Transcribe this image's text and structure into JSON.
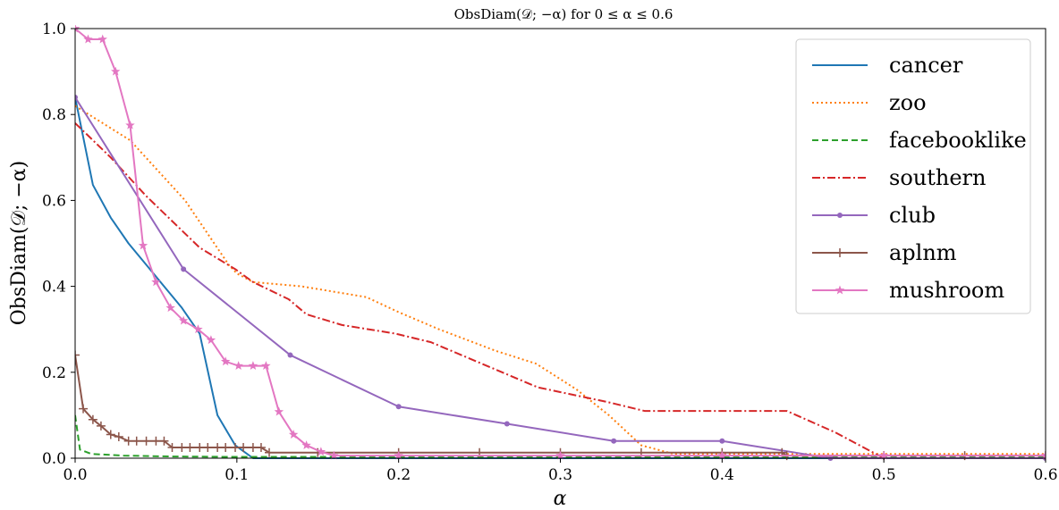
{
  "chart_data": {
    "type": "line",
    "title": "ObsDiam(𝒟; −α) for 0 ≤ α ≤ 0.6",
    "xlabel": "α",
    "ylabel": "ObsDiam(𝒟; −α)",
    "xlim": [
      0,
      0.6
    ],
    "ylim": [
      0,
      1.0
    ],
    "xticks": [
      "0.0",
      "0.1",
      "0.2",
      "0.3",
      "0.4",
      "0.5",
      "0.6"
    ],
    "yticks": [
      "0.0",
      "0.2",
      "0.4",
      "0.6",
      "0.8",
      "1.0"
    ],
    "legend_position": "top-right",
    "grid": false,
    "series": [
      {
        "name": "cancer",
        "color": "#1f77b4",
        "dash": "solid",
        "marker": "none",
        "points": [
          [
            0,
            0.84
          ],
          [
            0.011,
            0.636
          ],
          [
            0.022,
            0.56
          ],
          [
            0.033,
            0.5
          ],
          [
            0.044,
            0.45
          ],
          [
            0.055,
            0.4
          ],
          [
            0.066,
            0.35
          ],
          [
            0.077,
            0.29
          ],
          [
            0.088,
            0.1
          ],
          [
            0.099,
            0.03
          ],
          [
            0.11,
            0.0
          ],
          [
            0.6,
            0.0
          ]
        ]
      },
      {
        "name": "zoo",
        "color": "#ff7f0e",
        "dash": "dotted",
        "marker": "none",
        "points": [
          [
            0,
            0.82
          ],
          [
            0.034,
            0.74
          ],
          [
            0.068,
            0.6
          ],
          [
            0.095,
            0.45
          ],
          [
            0.1,
            0.43
          ],
          [
            0.11,
            0.41
          ],
          [
            0.14,
            0.4
          ],
          [
            0.18,
            0.375
          ],
          [
            0.2,
            0.34
          ],
          [
            0.225,
            0.3
          ],
          [
            0.26,
            0.25
          ],
          [
            0.285,
            0.22
          ],
          [
            0.31,
            0.16
          ],
          [
            0.33,
            0.1
          ],
          [
            0.35,
            0.03
          ],
          [
            0.37,
            0.01
          ],
          [
            0.6,
            0.01
          ]
        ]
      },
      {
        "name": "facebooklike",
        "color": "#2ca02c",
        "dash": "dashed",
        "marker": "none",
        "points": [
          [
            0,
            0.1
          ],
          [
            0.003,
            0.02
          ],
          [
            0.01,
            0.01
          ],
          [
            0.03,
            0.006
          ],
          [
            0.06,
            0.004
          ],
          [
            0.1,
            0.003
          ],
          [
            0.6,
            0.003
          ]
        ]
      },
      {
        "name": "southern",
        "color": "#d62728",
        "dash": "dashdot",
        "marker": "none",
        "points": [
          [
            0,
            0.78
          ],
          [
            0.022,
            0.7
          ],
          [
            0.044,
            0.61
          ],
          [
            0.066,
            0.53
          ],
          [
            0.077,
            0.49
          ],
          [
            0.099,
            0.44
          ],
          [
            0.11,
            0.41
          ],
          [
            0.132,
            0.37
          ],
          [
            0.143,
            0.335
          ],
          [
            0.165,
            0.31
          ],
          [
            0.198,
            0.29
          ],
          [
            0.22,
            0.27
          ],
          [
            0.264,
            0.2
          ],
          [
            0.286,
            0.165
          ],
          [
            0.33,
            0.13
          ],
          [
            0.352,
            0.11
          ],
          [
            0.44,
            0.11
          ],
          [
            0.47,
            0.06
          ],
          [
            0.5,
            0.0
          ],
          [
            0.6,
            0.0
          ]
        ]
      },
      {
        "name": "club",
        "color": "#9467bd",
        "dash": "solid",
        "marker": "circle",
        "points": [
          [
            0,
            0.84
          ],
          [
            0.067,
            0.44
          ],
          [
            0.133,
            0.24
          ],
          [
            0.2,
            0.12
          ],
          [
            0.267,
            0.08
          ],
          [
            0.333,
            0.04
          ],
          [
            0.4,
            0.04
          ],
          [
            0.467,
            0.0
          ],
          [
            0.6,
            0.0
          ]
        ]
      },
      {
        "name": "aplnm",
        "color": "#8c564b",
        "dash": "solid",
        "marker": "plus",
        "points": [
          [
            0,
            0.24
          ],
          [
            0.005,
            0.115
          ],
          [
            0.011,
            0.09
          ],
          [
            0.016,
            0.075
          ],
          [
            0.022,
            0.055
          ],
          [
            0.027,
            0.05
          ],
          [
            0.033,
            0.04
          ],
          [
            0.038,
            0.04
          ],
          [
            0.044,
            0.04
          ],
          [
            0.05,
            0.04
          ],
          [
            0.055,
            0.04
          ],
          [
            0.06,
            0.025
          ],
          [
            0.066,
            0.025
          ],
          [
            0.071,
            0.025
          ],
          [
            0.077,
            0.025
          ],
          [
            0.082,
            0.025
          ],
          [
            0.088,
            0.025
          ],
          [
            0.093,
            0.025
          ],
          [
            0.099,
            0.025
          ],
          [
            0.104,
            0.025
          ],
          [
            0.11,
            0.025
          ],
          [
            0.115,
            0.025
          ],
          [
            0.12,
            0.013
          ],
          [
            0.15,
            0.013
          ],
          [
            0.2,
            0.013
          ],
          [
            0.25,
            0.013
          ],
          [
            0.3,
            0.013
          ],
          [
            0.35,
            0.013
          ],
          [
            0.4,
            0.013
          ],
          [
            0.437,
            0.013
          ],
          [
            0.44,
            0.006
          ],
          [
            0.5,
            0.006
          ],
          [
            0.55,
            0.006
          ],
          [
            0.6,
            0.006
          ]
        ]
      },
      {
        "name": "mushroom",
        "color": "#e377c2",
        "dash": "solid",
        "marker": "star",
        "points": [
          [
            0,
            1.0
          ],
          [
            0.008,
            0.975
          ],
          [
            0.017,
            0.975
          ],
          [
            0.025,
            0.9
          ],
          [
            0.034,
            0.775
          ],
          [
            0.042,
            0.495
          ],
          [
            0.05,
            0.41
          ],
          [
            0.059,
            0.35
          ],
          [
            0.067,
            0.32
          ],
          [
            0.076,
            0.3
          ],
          [
            0.084,
            0.275
          ],
          [
            0.093,
            0.225
          ],
          [
            0.101,
            0.215
          ],
          [
            0.11,
            0.215
          ],
          [
            0.118,
            0.215
          ],
          [
            0.126,
            0.108
          ],
          [
            0.135,
            0.055
          ],
          [
            0.143,
            0.03
          ],
          [
            0.152,
            0.015
          ],
          [
            0.16,
            0.006
          ],
          [
            0.2,
            0.006
          ],
          [
            0.3,
            0.006
          ],
          [
            0.4,
            0.006
          ],
          [
            0.5,
            0.006
          ],
          [
            0.6,
            0.006
          ]
        ]
      }
    ]
  }
}
